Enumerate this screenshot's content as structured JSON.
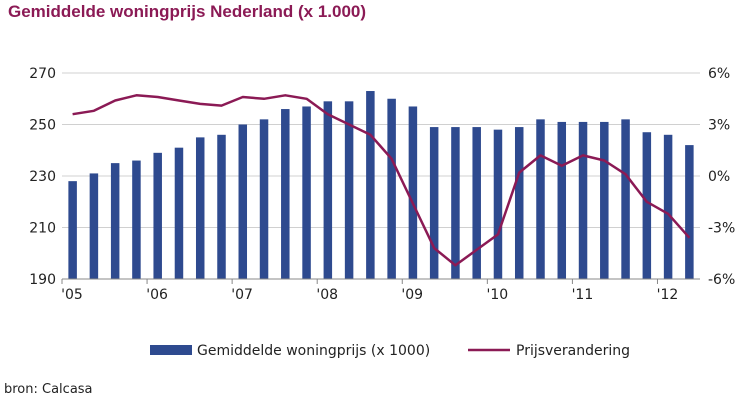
{
  "title": "Gemiddelde woningprijs Nederland (x 1.000)",
  "source": "bron: Calcasa",
  "colors": {
    "bars": "#2e4a8f",
    "line": "#8b1a55",
    "title": "#8b1a55"
  },
  "chart_data": {
    "type": "bar",
    "title": "Gemiddelde woningprijs Nederland (x 1.000)",
    "x_tick_labels": [
      "'05",
      "'06",
      "'07",
      "'08",
      "'09",
      "'10",
      "'11",
      "'12"
    ],
    "y_left": {
      "lim": [
        190,
        270
      ],
      "ticks": [
        "190",
        "210",
        "230",
        "250",
        "270"
      ],
      "tick_values": [
        190,
        210,
        230,
        250,
        270
      ]
    },
    "y_right": {
      "lim": [
        -6,
        6
      ],
      "ticks": [
        "-6%",
        "-3%",
        "0%",
        "3%",
        "6%"
      ],
      "tick_values": [
        -6,
        -3,
        0,
        3,
        6
      ]
    },
    "grid": true,
    "legend_position": "bottom",
    "series": [
      {
        "name": "Gemiddelde woningprijs (x 1000)",
        "type": "bar",
        "axis": "left",
        "values": [
          228,
          231,
          235,
          236,
          239,
          241,
          245,
          246,
          250,
          252,
          256,
          257,
          259,
          259,
          263,
          260,
          257,
          249,
          249,
          249,
          248,
          249,
          252,
          251,
          251,
          251,
          252,
          247,
          246,
          242
        ]
      },
      {
        "name": "Prijsverandering",
        "type": "line",
        "axis": "right",
        "values": [
          3.6,
          3.8,
          4.4,
          4.7,
          4.6,
          4.4,
          4.2,
          4.1,
          4.6,
          4.5,
          4.7,
          4.5,
          3.6,
          3.0,
          2.4,
          1.0,
          -1.6,
          -4.2,
          -5.2,
          -4.3,
          -3.4,
          0.2,
          1.2,
          0.6,
          1.2,
          0.9,
          0.1,
          -1.5,
          -2.2,
          -3.6
        ]
      }
    ]
  }
}
